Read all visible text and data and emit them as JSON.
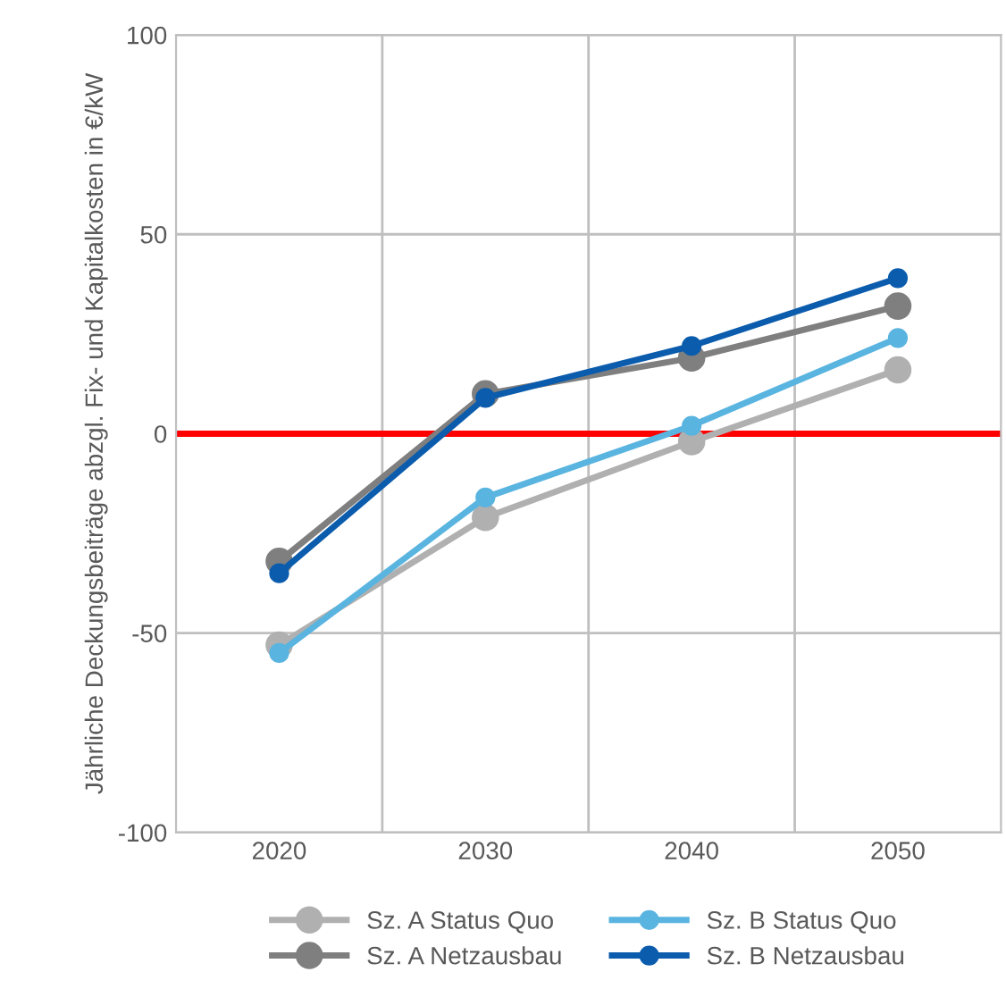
{
  "chart_data": {
    "type": "line",
    "ylabel": "Jährliche Deckungsbeiträge abzgl. Fix- und Kapitalkosten in €/kW",
    "categories": [
      "2020",
      "2030",
      "2040",
      "2050"
    ],
    "series": [
      {
        "name": "Sz. A Status Quo",
        "color": "#b0b0b0",
        "values": [
          -53,
          -21,
          -2,
          16
        ]
      },
      {
        "name": "Sz. A Netzausbau",
        "color": "#7f7f7f",
        "values": [
          -32,
          10,
          19,
          32
        ]
      },
      {
        "name": "Sz. B Status Quo",
        "color": "#5ab4e0",
        "values": [
          -55,
          -16,
          2,
          24
        ]
      },
      {
        "name": "Sz. B Netzausbau",
        "color": "#0b5cad",
        "values": [
          -35,
          9,
          22,
          39
        ]
      }
    ],
    "ylim": [
      -100,
      100
    ],
    "yticks": [
      -100,
      -50,
      0,
      50,
      100
    ],
    "ref_lines": [
      {
        "axis": "y",
        "value": 0,
        "color": "#ff0000",
        "line_style": "solid"
      }
    ],
    "grid": true,
    "legend": "bottom",
    "marker": "circle",
    "line_style": "solid"
  }
}
